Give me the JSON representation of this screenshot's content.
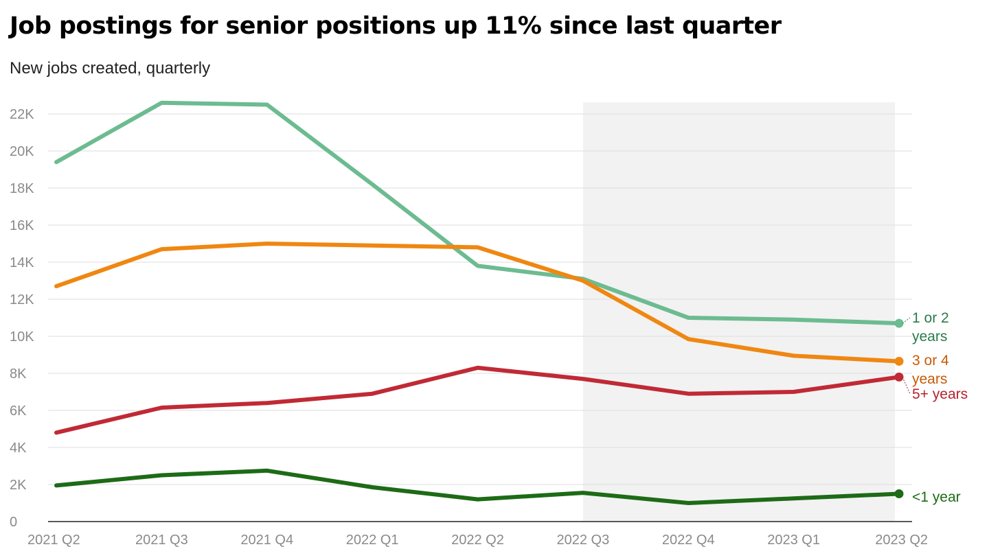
{
  "chart_data": {
    "type": "line",
    "title": "Job postings for senior positions up 11% since last quarter",
    "subtitle": "New jobs created, quarterly",
    "categories": [
      "2021 Q2",
      "2021 Q3",
      "2021 Q4",
      "2022 Q1",
      "2022 Q2",
      "2022 Q3",
      "2022 Q4",
      "2023 Q1",
      "2023 Q2"
    ],
    "ylim": [
      0,
      22000
    ],
    "yticks": [
      0,
      2000,
      4000,
      6000,
      8000,
      10000,
      12000,
      14000,
      16000,
      18000,
      20000,
      22000
    ],
    "ytick_labels": [
      "0",
      "2K",
      "4K",
      "6K",
      "8K",
      "10K",
      "12K",
      "14K",
      "16K",
      "18K",
      "20K",
      "22K"
    ],
    "grid": true,
    "highlight_range": [
      "2022 Q3",
      "2023 Q2"
    ],
    "legend": "direct labels at line ends (right)",
    "series": [
      {
        "name": "1 or 2 years",
        "label_lines": [
          "1 or 2",
          "years"
        ],
        "color": "#6dbb91",
        "label_color": "#2a7a4a",
        "values": [
          19400,
          22600,
          22500,
          18200,
          13800,
          13100,
          11000,
          10900,
          10700
        ]
      },
      {
        "name": "3 or 4 years",
        "label_lines": [
          "3 or 4",
          "years"
        ],
        "color": "#ef8712",
        "label_color": "#c65a05",
        "values": [
          12700,
          14700,
          15000,
          14900,
          14800,
          13000,
          9850,
          8950,
          8650
        ]
      },
      {
        "name": "5+ years",
        "label_lines": [
          "5+ years"
        ],
        "color": "#c02a35",
        "label_color": "#b3222e",
        "values": [
          4800,
          6150,
          6400,
          6900,
          8300,
          7700,
          6900,
          7000,
          7800
        ]
      },
      {
        "name": "<1 year",
        "label_lines": [
          "<1 year"
        ],
        "color": "#1d6b16",
        "label_color": "#1d6b16",
        "values": [
          1950,
          2500,
          2750,
          1850,
          1200,
          1550,
          1000,
          1250,
          1500
        ]
      }
    ]
  }
}
